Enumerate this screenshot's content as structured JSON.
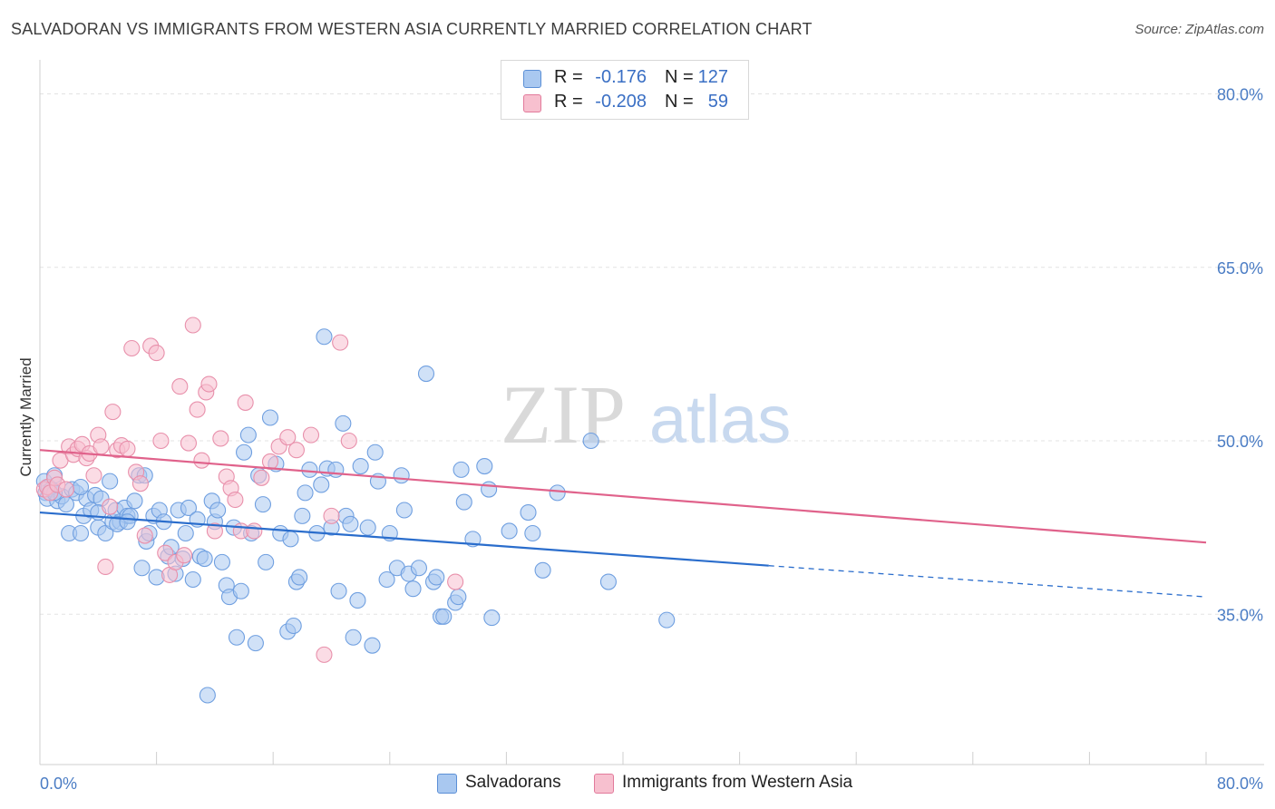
{
  "title": "SALVADORAN VS IMMIGRANTS FROM WESTERN ASIA CURRENTLY MARRIED CORRELATION CHART",
  "source": "Source: ZipAtlas.com",
  "watermark": {
    "zip": "ZIP",
    "atlas": "atlas"
  },
  "legend": {
    "rows": [
      {
        "r_label": "R =",
        "r_value": "-0.176",
        "n_label": "N =",
        "n_value": "127",
        "color": "#a9c8f0",
        "border": "#5b8fd6"
      },
      {
        "r_label": "R =",
        "r_value": "-0.208",
        "n_label": "N =",
        "n_value": "59",
        "color": "#f7c0cf",
        "border": "#e27a9b"
      }
    ]
  },
  "bottom_legend": [
    {
      "label": "Salvadorans",
      "color": "#a9c8f0",
      "border": "#5b8fd6"
    },
    {
      "label": "Immigrants from Western Asia",
      "color": "#f7c0cf",
      "border": "#e27a9b"
    }
  ],
  "chart_data": {
    "type": "scatter",
    "title": "SALVADORAN VS IMMIGRANTS FROM WESTERN ASIA CURRENTLY MARRIED CORRELATION CHART",
    "xlabel": "",
    "ylabel": "Currently Married",
    "xlim": [
      0,
      80
    ],
    "ylim": [
      22,
      82
    ],
    "x_tick_labels": [
      "0.0%",
      "80.0%"
    ],
    "y_ticks": [
      35,
      50,
      65,
      80
    ],
    "y_tick_labels": [
      "35.0%",
      "50.0%",
      "65.0%",
      "80.0%"
    ],
    "grid": "horizontal dashed",
    "series": [
      {
        "name": "Salvadorans",
        "color": "#6f9fe0",
        "fill": "#a9c8f0",
        "trend": {
          "x": [
            0,
            50
          ],
          "y": [
            43.8,
            39.2
          ],
          "dashed_extension": {
            "x": [
              50,
              80
            ],
            "y": [
              39.2,
              36.5
            ]
          },
          "color": "#2a6dcc"
        },
        "points": [
          [
            0.3,
            46.5
          ],
          [
            0.4,
            45.5
          ],
          [
            0.5,
            45.0
          ],
          [
            0.6,
            46.0
          ],
          [
            0.8,
            45.8
          ],
          [
            1.0,
            47.0
          ],
          [
            1.2,
            44.8
          ],
          [
            1.5,
            45.2
          ],
          [
            1.8,
            44.5
          ],
          [
            2.0,
            42.0
          ],
          [
            2.2,
            45.8
          ],
          [
            2.5,
            45.5
          ],
          [
            2.8,
            42.0
          ],
          [
            3.0,
            43.5
          ],
          [
            3.2,
            45.0
          ],
          [
            3.5,
            44.0
          ],
          [
            3.8,
            45.3
          ],
          [
            4.0,
            42.5
          ],
          [
            4.2,
            45.0
          ],
          [
            4.5,
            42.0
          ],
          [
            4.8,
            46.5
          ],
          [
            5.0,
            43.0
          ],
          [
            5.2,
            44.0
          ],
          [
            5.5,
            43.0
          ],
          [
            5.8,
            44.2
          ],
          [
            6.0,
            43.5
          ],
          [
            6.2,
            43.5
          ],
          [
            6.5,
            44.8
          ],
          [
            6.8,
            47.0
          ],
          [
            7.0,
            39.0
          ],
          [
            7.2,
            47.0
          ],
          [
            7.3,
            41.3
          ],
          [
            7.5,
            42.0
          ],
          [
            7.8,
            43.5
          ],
          [
            8.0,
            38.2
          ],
          [
            8.2,
            44.0
          ],
          [
            8.5,
            43.0
          ],
          [
            8.8,
            40.0
          ],
          [
            9.0,
            40.8
          ],
          [
            9.3,
            38.5
          ],
          [
            9.5,
            44.0
          ],
          [
            9.8,
            39.8
          ],
          [
            10.0,
            42.0
          ],
          [
            10.2,
            44.2
          ],
          [
            10.5,
            38.0
          ],
          [
            10.8,
            43.2
          ],
          [
            11.0,
            40.0
          ],
          [
            11.3,
            39.8
          ],
          [
            11.5,
            28.0
          ],
          [
            11.8,
            44.8
          ],
          [
            12.0,
            43.0
          ],
          [
            12.2,
            44.0
          ],
          [
            12.5,
            39.5
          ],
          [
            12.8,
            37.5
          ],
          [
            13.0,
            36.5
          ],
          [
            13.3,
            42.5
          ],
          [
            13.5,
            33.0
          ],
          [
            13.8,
            37.0
          ],
          [
            14.0,
            49.0
          ],
          [
            14.3,
            50.5
          ],
          [
            14.5,
            42.0
          ],
          [
            14.8,
            32.5
          ],
          [
            15.0,
            47.0
          ],
          [
            15.3,
            44.5
          ],
          [
            15.5,
            39.5
          ],
          [
            15.8,
            52.0
          ],
          [
            16.2,
            48.0
          ],
          [
            16.5,
            42.0
          ],
          [
            17.0,
            33.5
          ],
          [
            17.2,
            41.5
          ],
          [
            17.4,
            34.0
          ],
          [
            17.6,
            37.8
          ],
          [
            17.8,
            38.2
          ],
          [
            18.0,
            43.5
          ],
          [
            18.2,
            45.5
          ],
          [
            18.5,
            47.5
          ],
          [
            19.0,
            42.0
          ],
          [
            19.3,
            46.2
          ],
          [
            19.5,
            59.0
          ],
          [
            19.7,
            47.6
          ],
          [
            20.0,
            42.5
          ],
          [
            20.3,
            47.5
          ],
          [
            20.5,
            37.0
          ],
          [
            20.8,
            51.5
          ],
          [
            21.0,
            43.5
          ],
          [
            21.3,
            42.8
          ],
          [
            21.5,
            33.0
          ],
          [
            21.8,
            36.2
          ],
          [
            22.0,
            47.8
          ],
          [
            22.5,
            42.5
          ],
          [
            22.8,
            32.3
          ],
          [
            23.0,
            49.0
          ],
          [
            23.2,
            46.5
          ],
          [
            23.8,
            38.0
          ],
          [
            24.0,
            42.0
          ],
          [
            24.5,
            39.0
          ],
          [
            24.8,
            47.0
          ],
          [
            25.0,
            44.0
          ],
          [
            25.3,
            38.5
          ],
          [
            25.6,
            37.2
          ],
          [
            26.0,
            39.0
          ],
          [
            26.5,
            55.8
          ],
          [
            27.0,
            37.8
          ],
          [
            27.2,
            38.2
          ],
          [
            27.5,
            34.8
          ],
          [
            27.7,
            34.8
          ],
          [
            28.5,
            36.0
          ],
          [
            28.7,
            36.5
          ],
          [
            28.9,
            47.5
          ],
          [
            29.1,
            44.7
          ],
          [
            29.7,
            41.5
          ],
          [
            30.5,
            47.8
          ],
          [
            30.8,
            45.8
          ],
          [
            31.0,
            34.7
          ],
          [
            32.2,
            42.2
          ],
          [
            33.5,
            43.8
          ],
          [
            33.8,
            42.0
          ],
          [
            34.5,
            38.8
          ],
          [
            35.5,
            45.5
          ],
          [
            37.8,
            50.0
          ],
          [
            39.0,
            37.8
          ],
          [
            43.0,
            34.5
          ],
          [
            1.0,
            45.5
          ],
          [
            2.8,
            46.0
          ],
          [
            4.0,
            43.8
          ],
          [
            5.3,
            42.8
          ],
          [
            6.0,
            43.0
          ]
        ]
      },
      {
        "name": "Immigrants from Western Asia",
        "color": "#e890ab",
        "fill": "#f7c0cf",
        "trend": {
          "x": [
            0,
            80
          ],
          "y": [
            49.2,
            41.2
          ],
          "color": "#e0628b"
        },
        "points": [
          [
            0.3,
            45.8
          ],
          [
            0.5,
            46.0
          ],
          [
            0.7,
            45.5
          ],
          [
            1.0,
            46.8
          ],
          [
            1.2,
            46.2
          ],
          [
            1.4,
            48.3
          ],
          [
            1.8,
            45.8
          ],
          [
            2.0,
            49.5
          ],
          [
            2.3,
            48.8
          ],
          [
            2.6,
            49.3
          ],
          [
            2.9,
            49.7
          ],
          [
            3.2,
            48.5
          ],
          [
            3.4,
            48.9
          ],
          [
            3.7,
            47.0
          ],
          [
            4.0,
            50.5
          ],
          [
            4.2,
            49.5
          ],
          [
            4.5,
            39.1
          ],
          [
            4.8,
            44.3
          ],
          [
            5.0,
            52.5
          ],
          [
            5.3,
            49.2
          ],
          [
            5.6,
            49.6
          ],
          [
            6.0,
            49.3
          ],
          [
            6.3,
            58.0
          ],
          [
            6.6,
            47.3
          ],
          [
            6.9,
            46.3
          ],
          [
            7.2,
            41.8
          ],
          [
            7.6,
            58.2
          ],
          [
            8.0,
            57.6
          ],
          [
            8.3,
            50.0
          ],
          [
            8.6,
            40.3
          ],
          [
            8.9,
            38.4
          ],
          [
            9.3,
            39.5
          ],
          [
            9.6,
            54.7
          ],
          [
            9.9,
            40.1
          ],
          [
            10.2,
            49.8
          ],
          [
            10.5,
            60.0
          ],
          [
            10.8,
            52.7
          ],
          [
            11.1,
            48.3
          ],
          [
            11.4,
            54.2
          ],
          [
            11.6,
            54.9
          ],
          [
            12.0,
            42.2
          ],
          [
            12.4,
            50.2
          ],
          [
            12.8,
            46.9
          ],
          [
            13.1,
            45.9
          ],
          [
            13.4,
            44.9
          ],
          [
            13.8,
            42.2
          ],
          [
            14.1,
            53.3
          ],
          [
            14.7,
            42.2
          ],
          [
            15.2,
            46.8
          ],
          [
            15.8,
            48.2
          ],
          [
            16.4,
            49.5
          ],
          [
            17.0,
            50.3
          ],
          [
            17.6,
            49.2
          ],
          [
            18.6,
            50.5
          ],
          [
            19.5,
            31.5
          ],
          [
            20.0,
            43.5
          ],
          [
            20.6,
            58.5
          ],
          [
            21.2,
            50.0
          ],
          [
            28.5,
            37.8
          ]
        ]
      }
    ]
  }
}
